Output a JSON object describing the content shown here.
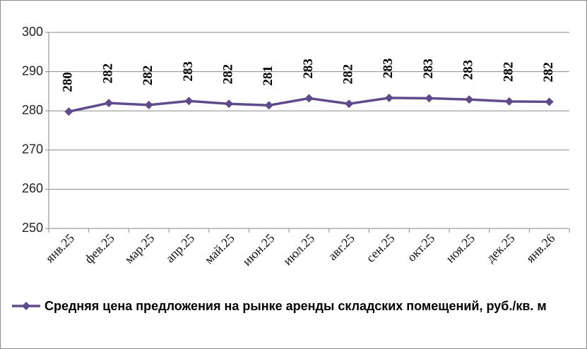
{
  "chart_data": {
    "type": "line",
    "categories": [
      "янв.25",
      "фев.25",
      "мар.25",
      "апр.25",
      "май.25",
      "июн.25",
      "июл.25",
      "авг.25",
      "сен.25",
      "окт.25",
      "ноя.25",
      "дек.25",
      "янв.26"
    ],
    "series": [
      {
        "name": "Средняя цена предложения на рынке аренды складских помещений, руб./кв. м",
        "color": "#5f4b8b",
        "values": [
          279.8,
          282.0,
          281.5,
          282.5,
          281.8,
          281.4,
          283.2,
          281.8,
          283.3,
          283.2,
          282.9,
          282.4,
          282.3
        ],
        "value_labels": [
          "280",
          "282",
          "282",
          "283",
          "282",
          "281",
          "283",
          "282",
          "283",
          "283",
          "283",
          "282",
          "282"
        ]
      }
    ],
    "ylim": [
      250,
      300
    ],
    "yticks": [
      250,
      260,
      270,
      280,
      290,
      300
    ],
    "grid": true,
    "legend": "bottom"
  }
}
